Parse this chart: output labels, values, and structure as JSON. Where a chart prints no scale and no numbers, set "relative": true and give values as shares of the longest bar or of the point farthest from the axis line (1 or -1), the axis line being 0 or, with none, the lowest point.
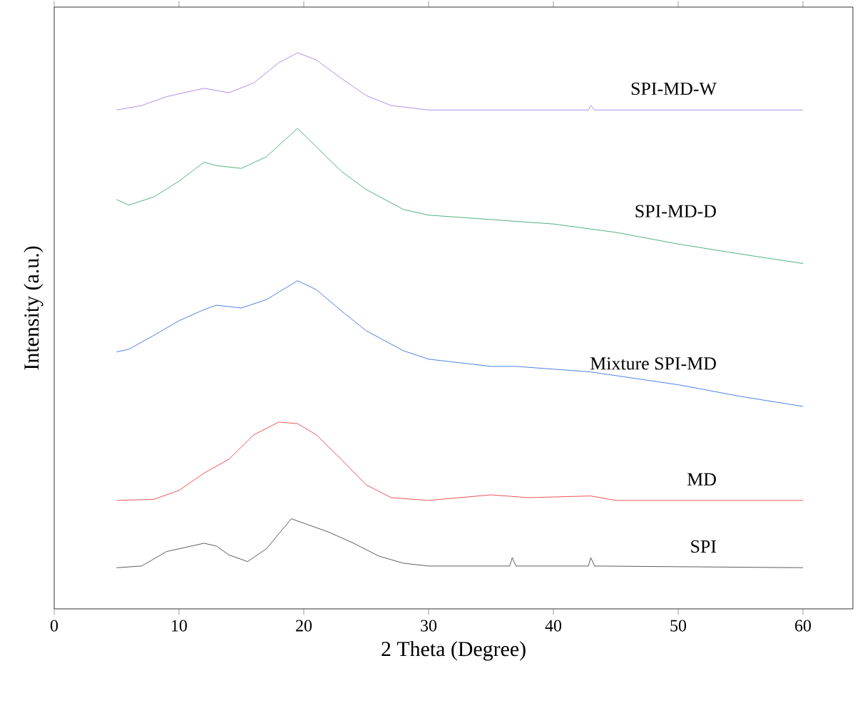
{
  "chart_data": {
    "type": "line",
    "relative": true,
    "xlabel": "2 Theta (Degree)",
    "ylabel": "Intensity (a.u.)",
    "xlim": [
      0,
      64
    ],
    "xticks": [
      0,
      10,
      20,
      30,
      40,
      50,
      60
    ],
    "grid": false,
    "legend": false,
    "marker": "none",
    "line_style": "solid",
    "series": [
      {
        "name": "SPI",
        "color": "#333333",
        "x": [
          5,
          7,
          9,
          10,
          12,
          13,
          14,
          15.5,
          17,
          19,
          20,
          22,
          24,
          26,
          28,
          30,
          36.5,
          36.7,
          37,
          42.8,
          43,
          43.3,
          60
        ],
        "values": [
          0.074,
          0.077,
          0.103,
          0.108,
          0.118,
          0.113,
          0.097,
          0.085,
          0.108,
          0.162,
          0.154,
          0.138,
          0.118,
          0.095,
          0.082,
          0.077,
          0.077,
          0.092,
          0.077,
          0.077,
          0.092,
          0.077,
          0.074
        ]
      },
      {
        "name": "MD",
        "color": "#e8282b",
        "x": [
          5,
          8,
          10,
          12,
          14,
          16,
          18,
          19.5,
          21,
          23,
          25,
          27,
          30,
          35,
          38,
          43,
          45,
          60
        ],
        "values": [
          0.195,
          0.197,
          0.213,
          0.244,
          0.269,
          0.313,
          0.336,
          0.333,
          0.313,
          0.269,
          0.223,
          0.2,
          0.195,
          0.205,
          0.2,
          0.203,
          0.195,
          0.195
        ]
      },
      {
        "name": "Mixture SPI-MD",
        "color": "#1f5fe0",
        "x": [
          5,
          6,
          8,
          10,
          12,
          13,
          15,
          17,
          19.5,
          21,
          23,
          25,
          28,
          30,
          35,
          37,
          43,
          50,
          55,
          60
        ],
        "values": [
          0.462,
          0.467,
          0.492,
          0.518,
          0.538,
          0.546,
          0.541,
          0.556,
          0.59,
          0.574,
          0.536,
          0.5,
          0.464,
          0.449,
          0.436,
          0.436,
          0.426,
          0.403,
          0.382,
          0.364
        ]
      },
      {
        "name": "SPI-MD-D",
        "color": "#22a060",
        "x": [
          5,
          6,
          8,
          10,
          12,
          13,
          15,
          17,
          19.5,
          21,
          23,
          25,
          28,
          30,
          35,
          40,
          45,
          50,
          55,
          60
        ],
        "values": [
          0.736,
          0.726,
          0.741,
          0.769,
          0.803,
          0.797,
          0.792,
          0.813,
          0.864,
          0.831,
          0.787,
          0.754,
          0.718,
          0.708,
          0.7,
          0.692,
          0.677,
          0.656,
          0.638,
          0.621
        ]
      },
      {
        "name": "SPI-MD-W",
        "color": "#a070e0",
        "x": [
          5,
          7,
          9,
          12,
          14,
          16,
          18,
          19.5,
          21,
          23,
          25,
          27,
          30,
          42.8,
          43,
          43.3,
          60
        ],
        "values": [
          0.897,
          0.905,
          0.921,
          0.936,
          0.928,
          0.946,
          0.982,
          1,
          0.987,
          0.954,
          0.923,
          0.905,
          0.897,
          0.897,
          0.905,
          0.897,
          0.897
        ]
      }
    ]
  }
}
